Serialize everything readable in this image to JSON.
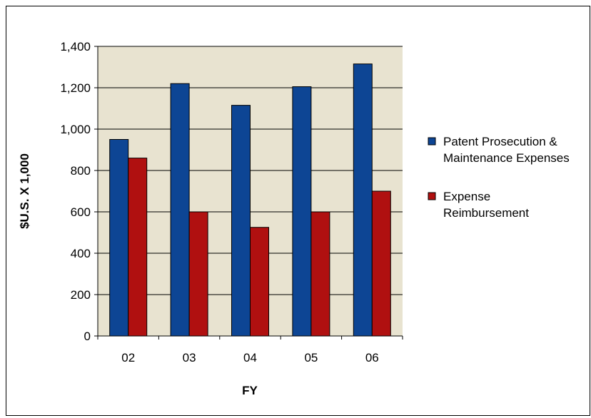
{
  "chart_data": {
    "type": "bar",
    "categories": [
      "02",
      "03",
      "04",
      "05",
      "06"
    ],
    "series": [
      {
        "name": "Patent Prosecution & Maintenance Expenses",
        "legend_lines": [
          "Patent Prosecution &",
          "Maintenance Expenses"
        ],
        "color": "#0D4594",
        "values": [
          950,
          1220,
          1115,
          1205,
          1315
        ]
      },
      {
        "name": "Expense Reimbursement",
        "legend_lines": [
          "Expense",
          "Reimbursement"
        ],
        "color": "#B01010",
        "values": [
          860,
          600,
          525,
          600,
          700
        ]
      }
    ],
    "xlabel": "FY",
    "ylabel": "$U.S. X 1,000",
    "ylim": [
      0,
      1400
    ],
    "yticks": [
      0,
      200,
      400,
      600,
      800,
      1000,
      1200,
      1400
    ],
    "ytick_labels": [
      "0",
      "200",
      "400",
      "600",
      "800",
      "1,000",
      "1,200",
      "1,400"
    ],
    "plot_background": "#E8E3D0",
    "grid": true,
    "legend_position": "right"
  }
}
